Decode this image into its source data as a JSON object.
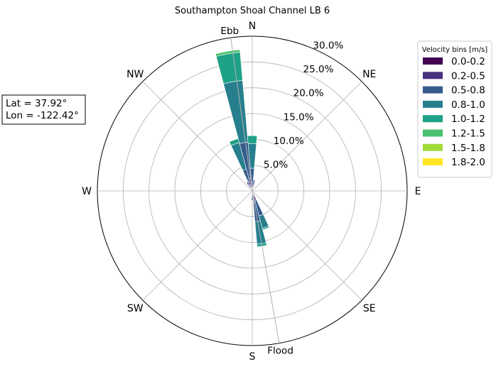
{
  "chart_data": {
    "type": "windrose",
    "title": "Southampton Shoal Channel LB 6",
    "direction_labels": [
      "N",
      "NE",
      "E",
      "SE",
      "S",
      "SW",
      "W",
      "NW"
    ],
    "radial_ticks": [
      5,
      10,
      15,
      20,
      25,
      30
    ],
    "radial_tick_labels": [
      "5.0%",
      "10.0%",
      "15.0%",
      "20.0%",
      "25.0%",
      "30.0%"
    ],
    "rmax": 30,
    "grid": true,
    "sector_width_deg": 10,
    "flow_axes": [
      {
        "label": "Ebb",
        "direction_deg": 352
      },
      {
        "label": "Flood",
        "direction_deg": 170
      }
    ],
    "coordinates": {
      "lat": "Lat = 37.92°",
      "lon": "Lon = -122.42°"
    },
    "legend": {
      "title": "Velocity bins [m/s]",
      "placement": "upper-right-outside",
      "bins": [
        {
          "label": "0.0-0.2",
          "color": "#440154"
        },
        {
          "label": "0.2-0.5",
          "color": "#46327e"
        },
        {
          "label": "0.5-0.8",
          "color": "#365c8d"
        },
        {
          "label": "0.8-1.0",
          "color": "#277f8e"
        },
        {
          "label": "1.0-1.2",
          "color": "#1fa187"
        },
        {
          "label": "1.2-1.5",
          "color": "#4ac16d"
        },
        {
          "label": "1.5-1.8",
          "color": "#a0da39"
        },
        {
          "label": "1.8-2.0",
          "color": "#fde725"
        }
      ]
    },
    "sectors": [
      {
        "direction_deg": 330,
        "values": [
          0.5,
          0.8,
          0.7
        ]
      },
      {
        "direction_deg": 340,
        "values": [
          0.6,
          1.3,
          2.5,
          5.3,
          0.8
        ]
      },
      {
        "direction_deg": 350,
        "values": [
          0.7,
          1.8,
          7.0,
          12.0,
          5.5,
          0.5
        ]
      },
      {
        "direction_deg": 0,
        "values": [
          0.5,
          1.2,
          2.7,
          4.8,
          1.5
        ]
      },
      {
        "direction_deg": 10,
        "values": [
          0.4,
          0.9,
          0.8
        ]
      },
      {
        "direction_deg": 160,
        "values": [
          0.5,
          1.4,
          3.1,
          2.5,
          0.3
        ]
      },
      {
        "direction_deg": 170,
        "values": [
          0.6,
          1.6,
          3.8,
          4.4,
          0.5
        ]
      },
      {
        "direction_deg": 180,
        "values": [
          0.3,
          0.7,
          0.8
        ]
      }
    ]
  }
}
